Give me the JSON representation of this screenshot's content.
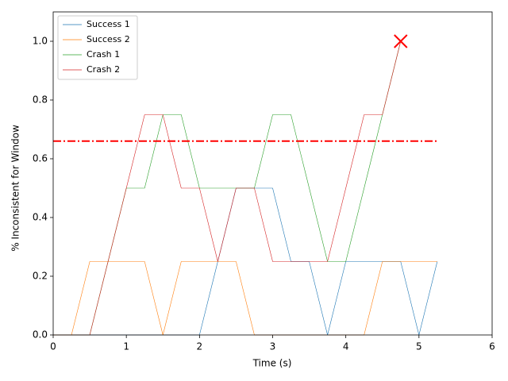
{
  "chart_data": {
    "type": "line",
    "xlabel": "Time (s)",
    "ylabel": "% Inconsistent for Window",
    "x": [
      0,
      0.25,
      0.5,
      0.75,
      1,
      1.25,
      1.5,
      1.75,
      2,
      2.25,
      2.5,
      2.75,
      3,
      3.25,
      3.5,
      3.75,
      4,
      4.25,
      4.5,
      4.75,
      5,
      5.25
    ],
    "series": [
      {
        "name": "Success 1",
        "color": "#1f77b4",
        "values": [
          0,
          0,
          0,
          0,
          0,
          0,
          0,
          0,
          0,
          0.25,
          0.5,
          0.5,
          0.5,
          0.25,
          0.25,
          0,
          0.25,
          0.25,
          0.25,
          0.25,
          0,
          0.25
        ]
      },
      {
        "name": "Success 2",
        "color": "#ff7f0e",
        "values": [
          0,
          0,
          0.25,
          0.25,
          0.25,
          0.25,
          0,
          0.25,
          0.25,
          0.25,
          0.25,
          0,
          0,
          0,
          0,
          0,
          0,
          0,
          0.25,
          0.25,
          0.25,
          0.25
        ]
      },
      {
        "name": "Crash 1",
        "color": "#2ca02c",
        "values": [
          0,
          0,
          0,
          0.25,
          0.5,
          0.5,
          0.75,
          0.75,
          0.5,
          0.5,
          0.5,
          0.5,
          0.75,
          0.75,
          0.5,
          0.25,
          0.25,
          0.5,
          0.75,
          1.0,
          null,
          null
        ]
      },
      {
        "name": "Crash 2",
        "color": "#d62728",
        "values": [
          0,
          0,
          0,
          0.25,
          0.5,
          0.75,
          0.75,
          0.5,
          0.5,
          0.25,
          0.5,
          0.5,
          0.25,
          0.25,
          0.25,
          0.25,
          0.5,
          0.75,
          0.75,
          1.0,
          null,
          null
        ]
      }
    ],
    "threshold": {
      "y": 0.66,
      "x": [
        0,
        5.25
      ],
      "color": "#ff0000"
    },
    "marker": {
      "x": 4.75,
      "y": 1.0,
      "color": "#ff0000"
    },
    "xlim": [
      0,
      6
    ],
    "xticks": [
      0,
      1,
      2,
      3,
      4,
      5,
      6
    ],
    "ylim": [
      0,
      1.1
    ],
    "yticks": [
      {
        "value": 0,
        "label": "0.0"
      },
      {
        "value": 0.2,
        "label": "0.2"
      },
      {
        "value": 0.4,
        "label": "0.4"
      },
      {
        "value": 0.6,
        "label": "0.6"
      },
      {
        "value": 0.8,
        "label": "0.8"
      },
      {
        "value": 1,
        "label": "1.0"
      }
    ],
    "legend": "upper left"
  }
}
